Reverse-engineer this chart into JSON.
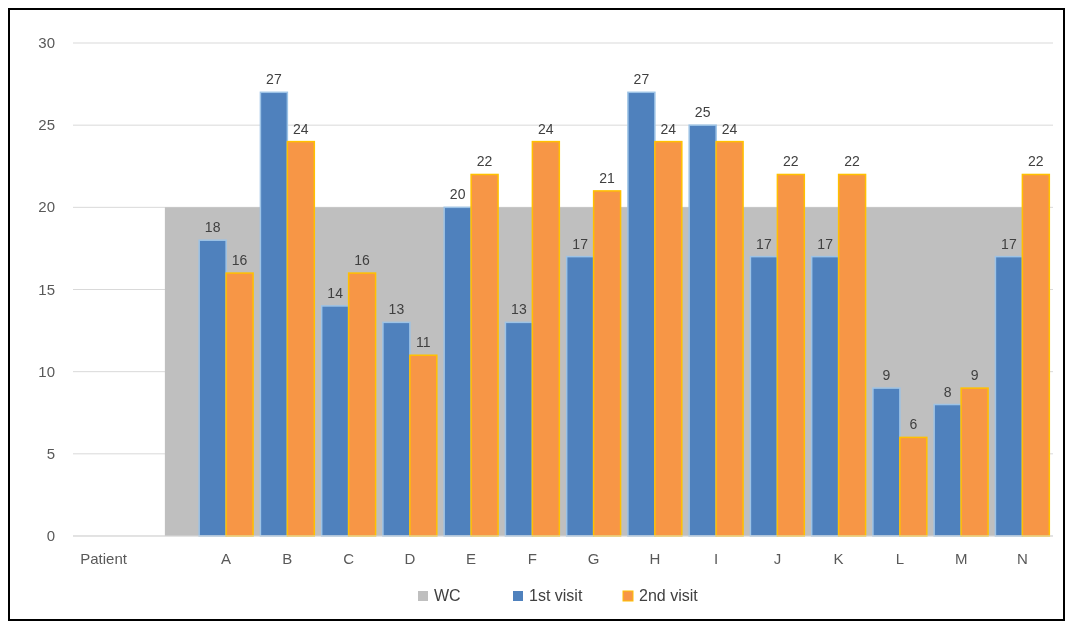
{
  "chart_data": {
    "type": "bar",
    "categories": [
      "Patient",
      null,
      "A",
      "B",
      "C",
      "D",
      "E",
      "F",
      "G",
      "H",
      "I",
      "J",
      "K",
      "L",
      "M",
      "N"
    ],
    "series": [
      {
        "name": "WC",
        "type": "area",
        "color": "#bfbfbf",
        "values": [
          null,
          20,
          20,
          20,
          20,
          20,
          20,
          20,
          20,
          20,
          20,
          20,
          20,
          20,
          20,
          20
        ]
      },
      {
        "name": "1st visit",
        "color": "#4f81bd",
        "values": [
          null,
          null,
          18,
          27,
          14,
          13,
          20,
          13,
          17,
          27,
          25,
          17,
          17,
          9,
          8,
          17
        ],
        "value_labels": [
          null,
          null,
          "18",
          "27",
          "14",
          "13",
          "20",
          "13",
          "17",
          "27",
          "25",
          "17",
          "17",
          "9",
          "8",
          "17"
        ]
      },
      {
        "name": "2nd visit",
        "color": "#f79646",
        "values": [
          null,
          null,
          16,
          24,
          16,
          11,
          22,
          24,
          21,
          24,
          24,
          22,
          22,
          6,
          9,
          22
        ],
        "value_labels": [
          null,
          null,
          "16",
          "24",
          "16",
          "11",
          "22",
          "24",
          "21",
          "24",
          "24",
          "22",
          "22",
          "6",
          "9",
          "22"
        ]
      }
    ],
    "ylim": [
      0,
      30
    ],
    "yticks": [
      0,
      5,
      10,
      15,
      20,
      25,
      30
    ],
    "grid": "y",
    "legend": "bottom"
  }
}
